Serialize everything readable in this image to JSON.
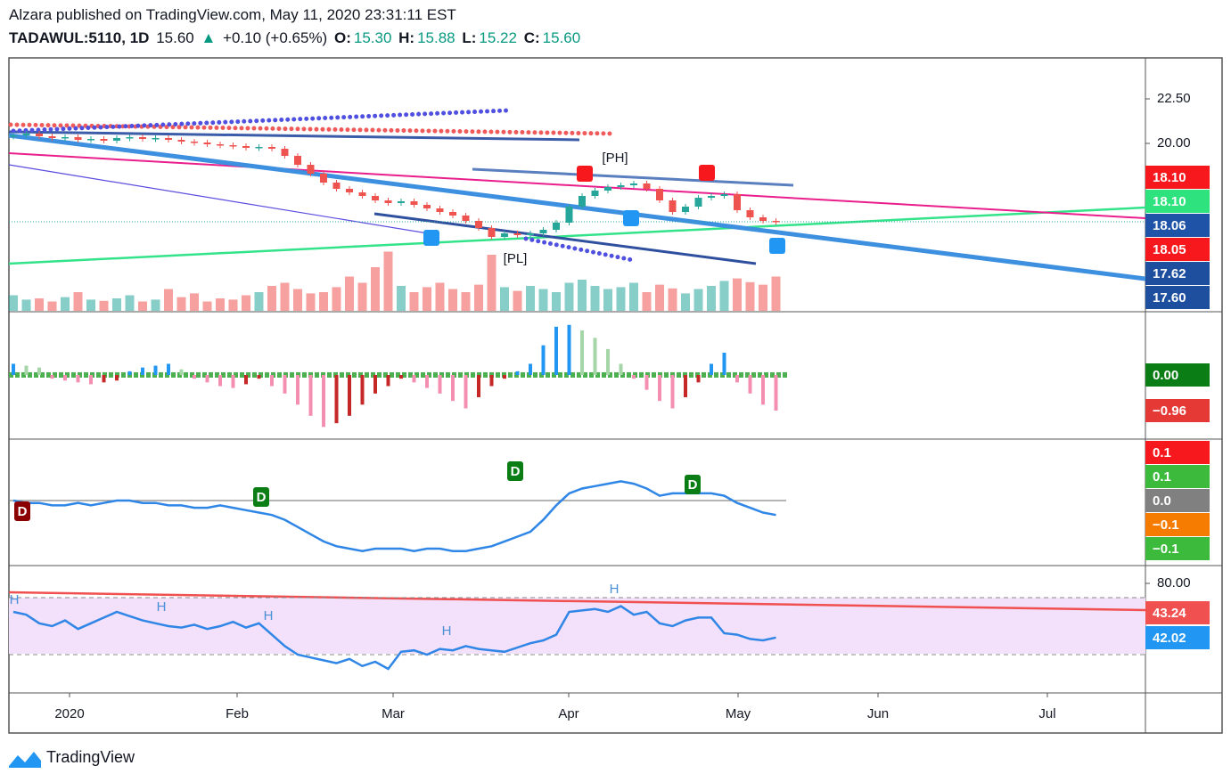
{
  "header": {
    "line1": "Alzara published on TradingView.com, May 11, 2020 23:31:11 EST",
    "symbol": "TADAWUL:5110, 1D",
    "last": "15.60",
    "arrow": "▲",
    "change": "+0.10 (+0.65%)",
    "o_label": "O:",
    "o": "15.30",
    "h_label": "H:",
    "h": "15.88",
    "l_label": "L:",
    "l": "15.22",
    "c_label": "C:",
    "c": "15.60"
  },
  "chart_data": [
    {
      "type": "candlestick",
      "ylim": [
        10.55,
        24.8
      ],
      "yticks": [
        {
          "value": 22.5,
          "label": "22.50"
        },
        {
          "value": 20,
          "label": "20.00"
        }
      ],
      "values": [
        20.45,
        20.55,
        20.4,
        20.3,
        20.35,
        20.2,
        20.25,
        20.15,
        20.3,
        20.35,
        20.25,
        20.3,
        20.2,
        20.1,
        20.05,
        19.95,
        19.9,
        19.85,
        19.75,
        19.8,
        19.7,
        19.3,
        18.8,
        18.3,
        17.8,
        17.45,
        17.25,
        17.05,
        16.8,
        16.65,
        16.75,
        16.55,
        16.35,
        16.15,
        15.95,
        15.65,
        15.25,
        14.75,
        14.95,
        14.85,
        14.95,
        15.15,
        15.55,
        16.45,
        17.05,
        17.35,
        17.55,
        17.65,
        17.75,
        17.45,
        16.8,
        16.15,
        16.45,
        16.95,
        17.05,
        17.15,
        16.25,
        15.85,
        15.65,
        15.6
      ],
      "volumes": [
        25,
        18,
        20,
        15,
        22,
        30,
        18,
        16,
        20,
        25,
        15,
        18,
        35,
        22,
        28,
        15,
        20,
        18,
        25,
        30,
        40,
        45,
        35,
        28,
        30,
        38,
        55,
        45,
        70,
        95,
        40,
        30,
        38,
        45,
        35,
        30,
        42,
        90,
        38,
        32,
        40,
        35,
        30,
        45,
        50,
        40,
        35,
        38,
        45,
        30,
        42,
        36,
        28,
        35,
        40,
        48,
        52,
        46,
        42,
        55
      ],
      "up_color": "#26a69a",
      "down_color": "#ef5350",
      "badges": [
        {
          "label": "18.10",
          "color": "#f7181e"
        },
        {
          "label": "18.10",
          "color": "#2ee37d"
        },
        {
          "label": "18.06",
          "color": "#1e53a7"
        },
        {
          "label": "18.05",
          "color": "#f7181e"
        },
        {
          "label": "17.62",
          "color": "#1e4f9f"
        },
        {
          "label": "17.60",
          "color": "#1e4f9f"
        }
      ],
      "annotations": [
        "[PH]",
        "[PL]"
      ]
    },
    {
      "type": "bar",
      "ylim": [
        -1.728,
        1.704
      ],
      "values": [
        0.3,
        0.25,
        0.2,
        -0.1,
        -0.15,
        -0.2,
        -0.25,
        -0.2,
        -0.15,
        0.1,
        0.2,
        0.25,
        0.3,
        0.15,
        -0.1,
        -0.2,
        -0.3,
        -0.35,
        -0.25,
        -0.1,
        -0.3,
        -0.5,
        -0.8,
        -1.1,
        -1.4,
        -1.3,
        -1.1,
        -0.8,
        -0.5,
        -0.3,
        -0.1,
        -0.2,
        -0.35,
        -0.5,
        -0.7,
        -0.9,
        -0.6,
        -0.3,
        -0.1,
        0.1,
        0.3,
        0.8,
        1.3,
        1.35,
        1.2,
        1.0,
        0.7,
        0.3,
        -0.1,
        -0.4,
        -0.7,
        -0.9,
        -0.6,
        -0.2,
        0.3,
        0.6,
        -0.2,
        -0.5,
        -0.8,
        -0.96
      ],
      "badges": [
        {
          "label": "0.00",
          "color": "#0a7d14"
        },
        {
          "label": "−0.96",
          "color": "#e53935"
        }
      ]
    },
    {
      "type": "line",
      "ylim": [
        -0.2704,
        0.2556
      ],
      "color": "#2f86e6",
      "values": [
        0,
        -0.01,
        -0.01,
        -0.02,
        -0.02,
        -0.01,
        -0.02,
        -0.01,
        0,
        0,
        -0.01,
        -0.01,
        -0.02,
        -0.02,
        -0.03,
        -0.03,
        -0.02,
        -0.03,
        -0.04,
        -0.05,
        -0.06,
        -0.08,
        -0.11,
        -0.14,
        -0.17,
        -0.19,
        -0.2,
        -0.21,
        -0.2,
        -0.2,
        -0.2,
        -0.21,
        -0.2,
        -0.2,
        -0.21,
        -0.21,
        -0.2,
        -0.19,
        -0.17,
        -0.15,
        -0.13,
        -0.08,
        -0.02,
        0.03,
        0.05,
        0.06,
        0.07,
        0.08,
        0.07,
        0.05,
        0.02,
        0.03,
        0.03,
        0.03,
        0.03,
        0.02,
        -0.01,
        -0.03,
        -0.05,
        -0.06
      ],
      "badges": [
        {
          "label": "0.1",
          "color": "#f7181e"
        },
        {
          "label": "0.1",
          "color": "#3cba3c"
        },
        {
          "label": "0.0",
          "color": "#808080"
        },
        {
          "label": "−0.1",
          "color": "#f57c00"
        },
        {
          "label": "−0.1",
          "color": "#3cba3c"
        }
      ],
      "annotations": [
        "D",
        "D",
        "D",
        "D"
      ]
    },
    {
      "type": "line",
      "ylim": [
        3.125,
        92.5
      ],
      "yticks": [
        {
          "value": 80,
          "label": "80.00"
        }
      ],
      "bands": [
        70,
        30
      ],
      "color": "#2f86e6",
      "values": [
        60,
        58,
        52,
        50,
        54,
        48,
        52,
        56,
        60,
        57,
        54,
        52,
        50,
        49,
        51,
        48,
        50,
        53,
        49,
        52,
        44,
        36,
        30,
        28,
        26,
        24,
        27,
        22,
        25,
        20,
        32,
        33,
        30,
        34,
        33,
        36,
        34,
        33,
        32,
        35,
        38,
        40,
        44,
        60,
        61,
        62,
        60,
        64,
        58,
        60,
        52,
        50,
        54,
        56,
        56,
        45,
        44,
        41,
        40,
        42
      ],
      "badges": [
        {
          "label": "43.24",
          "color": "#f05050"
        },
        {
          "label": "42.02",
          "color": "#2196f3"
        }
      ],
      "annotations": [
        "H",
        "H",
        "H",
        "H",
        "H"
      ]
    }
  ],
  "time_axis": [
    "2020",
    "Feb",
    "Mar",
    "Apr",
    "May",
    "Jun",
    "Jul"
  ],
  "footer": "TradingView"
}
